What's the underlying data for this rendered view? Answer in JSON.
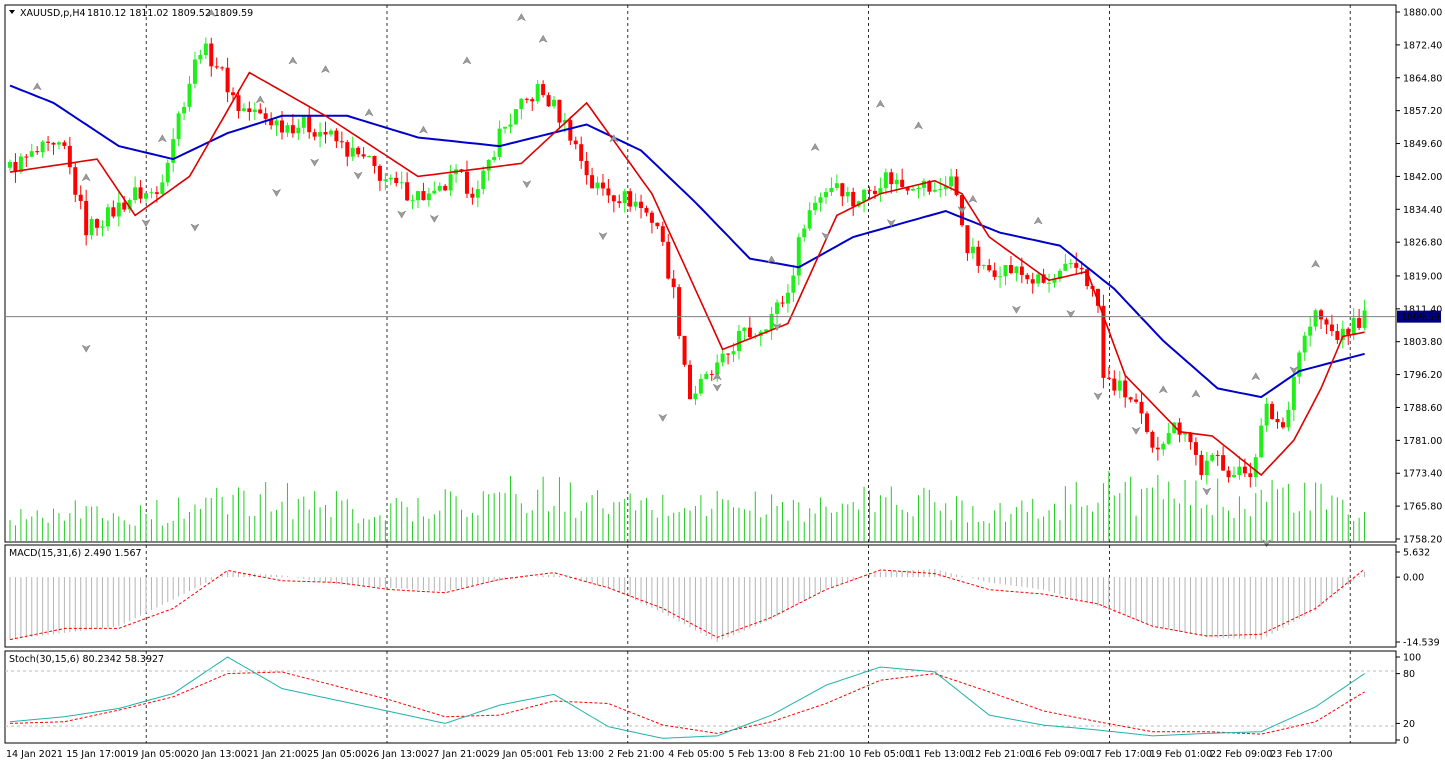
{
  "symbol_info": {
    "symbol_label": "XAUUSD,p,H4",
    "ohlc": "1810.12 1811.02 1809.52 1809.59"
  },
  "colors": {
    "bull": "#21ef1c",
    "bear": "#ff0000",
    "ma_fast": "#dd0000",
    "ma_slow": "#0000c8",
    "volume": "#22cc22",
    "macd_hist": "#b4b4b4",
    "macd_signal": "#ff0000",
    "stoch_main": "#20b2aa",
    "stoch_signal": "#ff0000",
    "fractal": "#9c9c9c",
    "price_line": "#808080",
    "price_label_bg": "#000080"
  },
  "price_scale": {
    "ticks": [
      "1880.00",
      "1872.40",
      "1864.80",
      "1857.20",
      "1849.60",
      "1842.00",
      "1834.40",
      "1826.80",
      "1819.00",
      "1811.40",
      "1803.80",
      "1796.20",
      "1788.60",
      "1781.00",
      "1773.40",
      "1765.80",
      "1758.20"
    ],
    "current_price": "1809.59",
    "min": 1758.2,
    "max": 1880.0
  },
  "macd": {
    "label": "MACD(15,31,6) 2.490 1.567",
    "ticks": [
      "5.632",
      "0.00",
      "-14.539"
    ],
    "min": -14.539,
    "max": 5.632
  },
  "stoch": {
    "label": "Stoch(30,15,6) 80.2342 58.3927",
    "ticks": [
      "100",
      "80",
      "20",
      "0"
    ]
  },
  "time_axis": {
    "labels": [
      "14 Jan 2021",
      "15 Jan 17:00",
      "19 Jan 05:00",
      "20 Jan 13:00",
      "21 Jan 21:00",
      "25 Jan 05:00",
      "26 Jan 13:00",
      "27 Jan 21:00",
      "29 Jan 05:00",
      "1 Feb 13:00",
      "2 Feb 21:00",
      "4 Feb 05:00",
      "5 Feb 13:00",
      "8 Feb 21:00",
      "10 Feb 05:00",
      "11 Feb 13:00",
      "12 Feb 21:00",
      "16 Feb 09:00",
      "17 Feb 17:00",
      "19 Feb 01:00",
      "22 Feb 09:00",
      "23 Feb 17:00"
    ]
  },
  "chart_data": {
    "type": "candlestick",
    "symbol": "XAUUSD",
    "timeframe": "H4",
    "x_start": "14 Jan 2021",
    "x_end": "23 Feb 17:00",
    "close_points": [
      [
        0,
        1844
      ],
      [
        6,
        1848
      ],
      [
        10,
        1848
      ],
      [
        14,
        1830
      ],
      [
        18,
        1833
      ],
      [
        23,
        1838
      ],
      [
        27,
        1838
      ],
      [
        31,
        1856
      ],
      [
        35,
        1872
      ],
      [
        38,
        1868
      ],
      [
        42,
        1858
      ],
      [
        46,
        1856
      ],
      [
        50,
        1854
      ],
      [
        54,
        1854
      ],
      [
        58,
        1852
      ],
      [
        62,
        1848
      ],
      [
        66,
        1845
      ],
      [
        70,
        1840
      ],
      [
        74,
        1838
      ],
      [
        78,
        1837
      ],
      [
        82,
        1842
      ],
      [
        86,
        1838
      ],
      [
        90,
        1852
      ],
      [
        94,
        1858
      ],
      [
        97,
        1862
      ],
      [
        100,
        1858
      ],
      [
        103,
        1852
      ],
      [
        107,
        1840
      ],
      [
        111,
        1838
      ],
      [
        115,
        1836
      ],
      [
        119,
        1831
      ],
      [
        122,
        1815
      ],
      [
        125,
        1791
      ],
      [
        128,
        1795
      ],
      [
        131,
        1799
      ],
      [
        134,
        1805
      ],
      [
        137,
        1806
      ],
      [
        140,
        1810
      ],
      [
        143,
        1815
      ],
      [
        146,
        1832
      ],
      [
        149,
        1838
      ],
      [
        152,
        1841
      ],
      [
        155,
        1836
      ],
      [
        158,
        1839
      ],
      [
        161,
        1842
      ],
      [
        164,
        1840
      ],
      [
        167,
        1841
      ],
      [
        170,
        1838
      ],
      [
        173,
        1842
      ],
      [
        176,
        1826
      ],
      [
        179,
        1820
      ],
      [
        182,
        1821
      ],
      [
        185,
        1820
      ],
      [
        188,
        1818
      ],
      [
        191,
        1817
      ],
      [
        194,
        1820
      ],
      [
        197,
        1821
      ],
      [
        200,
        1812
      ],
      [
        201,
        1795
      ],
      [
        204,
        1793
      ],
      [
        207,
        1789
      ],
      [
        210,
        1778
      ],
      [
        213,
        1784
      ],
      [
        216,
        1784
      ],
      [
        219,
        1774
      ],
      [
        222,
        1777
      ],
      [
        225,
        1773
      ],
      [
        228,
        1774
      ],
      [
        231,
        1788
      ],
      [
        234,
        1784
      ],
      [
        237,
        1802
      ],
      [
        240,
        1810
      ],
      [
        243,
        1806
      ],
      [
        245,
        1805
      ],
      [
        247,
        1808
      ],
      [
        249,
        1809.59
      ]
    ],
    "ma_fast_points": [
      [
        0,
        1843
      ],
      [
        16,
        1846
      ],
      [
        23,
        1833
      ],
      [
        33,
        1842
      ],
      [
        44,
        1866
      ],
      [
        58,
        1856
      ],
      [
        75,
        1842
      ],
      [
        94,
        1845
      ],
      [
        106,
        1859
      ],
      [
        118,
        1838
      ],
      [
        131,
        1802
      ],
      [
        143,
        1808
      ],
      [
        152,
        1833
      ],
      [
        160,
        1838
      ],
      [
        170,
        1841
      ],
      [
        175,
        1838
      ],
      [
        180,
        1828
      ],
      [
        191,
        1818
      ],
      [
        198,
        1820
      ],
      [
        205,
        1796
      ],
      [
        215,
        1783
      ],
      [
        221,
        1782
      ],
      [
        230,
        1773
      ],
      [
        236,
        1781
      ],
      [
        241,
        1793
      ],
      [
        245,
        1805
      ],
      [
        249,
        1806
      ]
    ],
    "ma_slow_points": [
      [
        0,
        1863
      ],
      [
        8,
        1859
      ],
      [
        20,
        1849
      ],
      [
        30,
        1846
      ],
      [
        40,
        1852
      ],
      [
        50,
        1856
      ],
      [
        62,
        1856
      ],
      [
        75,
        1851
      ],
      [
        90,
        1849
      ],
      [
        106,
        1854
      ],
      [
        116,
        1848
      ],
      [
        126,
        1836
      ],
      [
        136,
        1823
      ],
      [
        145,
        1821
      ],
      [
        155,
        1828
      ],
      [
        172,
        1834
      ],
      [
        182,
        1829
      ],
      [
        193,
        1826
      ],
      [
        203,
        1816
      ],
      [
        212,
        1804
      ],
      [
        222,
        1793
      ],
      [
        230,
        1791
      ],
      [
        237,
        1797
      ],
      [
        249,
        1801
      ]
    ],
    "volume_points": [
      [
        0,
        0.35
      ],
      [
        10,
        0.45
      ],
      [
        20,
        0.3
      ],
      [
        30,
        0.4
      ],
      [
        40,
        0.5
      ],
      [
        50,
        0.55
      ],
      [
        60,
        0.45
      ],
      [
        70,
        0.4
      ],
      [
        80,
        0.5
      ],
      [
        90,
        0.6
      ],
      [
        100,
        0.6
      ],
      [
        110,
        0.45
      ],
      [
        120,
        0.45
      ],
      [
        130,
        0.5
      ],
      [
        140,
        0.45
      ],
      [
        150,
        0.4
      ],
      [
        160,
        0.55
      ],
      [
        170,
        0.5
      ],
      [
        180,
        0.4
      ],
      [
        190,
        0.4
      ],
      [
        200,
        0.7
      ],
      [
        210,
        0.6
      ],
      [
        220,
        0.55
      ],
      [
        230,
        0.6
      ],
      [
        240,
        0.55
      ],
      [
        249,
        0.3
      ]
    ],
    "macd_hist_points": [
      [
        0,
        -14
      ],
      [
        10,
        -12.5
      ],
      [
        20,
        -11
      ],
      [
        30,
        -5
      ],
      [
        40,
        1.2
      ],
      [
        50,
        0.4
      ],
      [
        60,
        -1.6
      ],
      [
        70,
        -2.4
      ],
      [
        80,
        -3.2
      ],
      [
        90,
        -0.8
      ],
      [
        100,
        0.6
      ],
      [
        110,
        -2.4
      ],
      [
        120,
        -8
      ],
      [
        130,
        -14.5
      ],
      [
        140,
        -9.5
      ],
      [
        150,
        -2.6
      ],
      [
        160,
        1.2
      ],
      [
        170,
        1.8
      ],
      [
        180,
        -1.2
      ],
      [
        190,
        -2.8
      ],
      [
        200,
        -6.5
      ],
      [
        210,
        -11
      ],
      [
        220,
        -13.5
      ],
      [
        230,
        -14
      ],
      [
        240,
        -7.5
      ],
      [
        249,
        1.2
      ]
    ],
    "macd_signal_points": [
      [
        0,
        -14
      ],
      [
        10,
        -11.5
      ],
      [
        20,
        -11.5
      ],
      [
        30,
        -7
      ],
      [
        40,
        1.5
      ],
      [
        50,
        -0.8
      ],
      [
        60,
        -1.2
      ],
      [
        70,
        -2.8
      ],
      [
        80,
        -3.5
      ],
      [
        90,
        -0.5
      ],
      [
        100,
        1
      ],
      [
        110,
        -2.4
      ],
      [
        120,
        -7
      ],
      [
        130,
        -13.5
      ],
      [
        140,
        -9
      ],
      [
        150,
        -2.8
      ],
      [
        160,
        1.6
      ],
      [
        170,
        0.8
      ],
      [
        180,
        -2.8
      ],
      [
        190,
        -3.8
      ],
      [
        200,
        -6
      ],
      [
        210,
        -11
      ],
      [
        220,
        -13.2
      ],
      [
        230,
        -12.8
      ],
      [
        240,
        -7
      ],
      [
        249,
        1.8
      ]
    ],
    "stoch_main_points": [
      [
        0,
        22
      ],
      [
        10,
        28
      ],
      [
        20,
        38
      ],
      [
        30,
        56
      ],
      [
        40,
        100
      ],
      [
        50,
        62
      ],
      [
        60,
        48
      ],
      [
        70,
        34
      ],
      [
        80,
        20
      ],
      [
        90,
        42
      ],
      [
        100,
        55
      ],
      [
        110,
        16
      ],
      [
        120,
        2
      ],
      [
        130,
        5
      ],
      [
        140,
        30
      ],
      [
        150,
        66
      ],
      [
        160,
        88
      ],
      [
        170,
        82
      ],
      [
        180,
        30
      ],
      [
        190,
        18
      ],
      [
        200,
        12
      ],
      [
        210,
        5
      ],
      [
        220,
        8
      ],
      [
        230,
        10
      ],
      [
        240,
        40
      ],
      [
        249,
        80
      ]
    ],
    "stoch_signal_points": [
      [
        0,
        20
      ],
      [
        10,
        22
      ],
      [
        20,
        36
      ],
      [
        30,
        52
      ],
      [
        40,
        80
      ],
      [
        50,
        82
      ],
      [
        60,
        65
      ],
      [
        70,
        48
      ],
      [
        80,
        28
      ],
      [
        90,
        30
      ],
      [
        100,
        47
      ],
      [
        110,
        44
      ],
      [
        120,
        18
      ],
      [
        130,
        8
      ],
      [
        140,
        22
      ],
      [
        150,
        44
      ],
      [
        160,
        72
      ],
      [
        170,
        80
      ],
      [
        180,
        58
      ],
      [
        190,
        35
      ],
      [
        200,
        22
      ],
      [
        210,
        10
      ],
      [
        220,
        10
      ],
      [
        230,
        7
      ],
      [
        240,
        22
      ],
      [
        249,
        58
      ]
    ],
    "fractals_up": [
      [
        5,
        1862
      ],
      [
        14,
        1841
      ],
      [
        28,
        1850
      ],
      [
        37,
        1879
      ],
      [
        46,
        1859
      ],
      [
        52,
        1868
      ],
      [
        58,
        1866
      ],
      [
        66,
        1856
      ],
      [
        76,
        1852
      ],
      [
        84,
        1868
      ],
      [
        94,
        1878
      ],
      [
        98,
        1873
      ],
      [
        111,
        1850
      ],
      [
        130,
        1795
      ],
      [
        140,
        1822
      ],
      [
        148,
        1848
      ],
      [
        160,
        1858
      ],
      [
        167,
        1853
      ],
      [
        177,
        1836
      ],
      [
        189,
        1831
      ],
      [
        212,
        1792
      ],
      [
        218,
        1791
      ],
      [
        229,
        1795
      ],
      [
        240,
        1821
      ]
    ],
    "fractals_down": [
      [
        14,
        1803
      ],
      [
        25,
        1832
      ],
      [
        34,
        1831
      ],
      [
        49,
        1839
      ],
      [
        56,
        1846
      ],
      [
        64,
        1843
      ],
      [
        72,
        1834
      ],
      [
        78,
        1833
      ],
      [
        95,
        1841
      ],
      [
        109,
        1829
      ],
      [
        120,
        1787
      ],
      [
        130,
        1794
      ],
      [
        141,
        1808
      ],
      [
        150,
        1829
      ],
      [
        162,
        1832
      ],
      [
        175,
        1835
      ],
      [
        185,
        1812
      ],
      [
        195,
        1811
      ],
      [
        200,
        1792
      ],
      [
        207,
        1784
      ],
      [
        220,
        1770
      ],
      [
        231,
        1758
      ],
      [
        236,
        1798
      ]
    ]
  }
}
